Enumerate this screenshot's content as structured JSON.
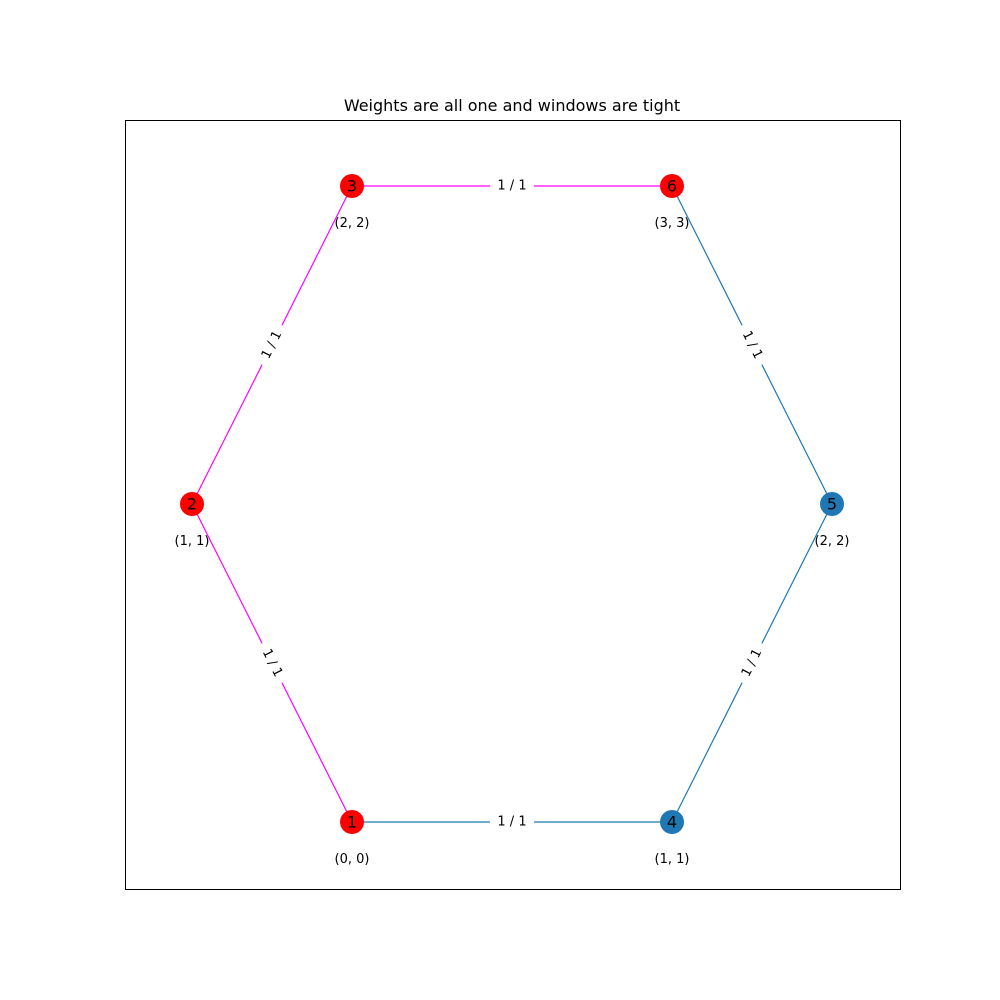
{
  "title": "Weights are all one and windows are tight",
  "colors": {
    "red": "#ff0000",
    "blue": "#1f77b4",
    "magenta": "#ff00ff"
  },
  "nodes": [
    {
      "id": "1",
      "label": "1",
      "window": "(0, 0)",
      "color": "red"
    },
    {
      "id": "2",
      "label": "2",
      "window": "(1, 1)",
      "color": "red"
    },
    {
      "id": "3",
      "label": "3",
      "window": "(2, 2)",
      "color": "red"
    },
    {
      "id": "4",
      "label": "4",
      "window": "(1, 1)",
      "color": "blue"
    },
    {
      "id": "5",
      "label": "5",
      "window": "(2, 2)",
      "color": "blue"
    },
    {
      "id": "6",
      "label": "6",
      "window": "(3, 3)",
      "color": "red"
    }
  ],
  "edges": [
    {
      "from": "1",
      "to": "2",
      "label": "1 / 1",
      "color": "magenta"
    },
    {
      "from": "2",
      "to": "3",
      "label": "1 / 1",
      "color": "magenta"
    },
    {
      "from": "3",
      "to": "6",
      "label": "1 / 1",
      "color": "magenta"
    },
    {
      "from": "6",
      "to": "5",
      "label": "1 / 1",
      "color": "blue"
    },
    {
      "from": "5",
      "to": "4",
      "label": "1 / 1",
      "color": "blue"
    },
    {
      "from": "4",
      "to": "1",
      "label": "1 / 1",
      "color": "blue"
    }
  ]
}
